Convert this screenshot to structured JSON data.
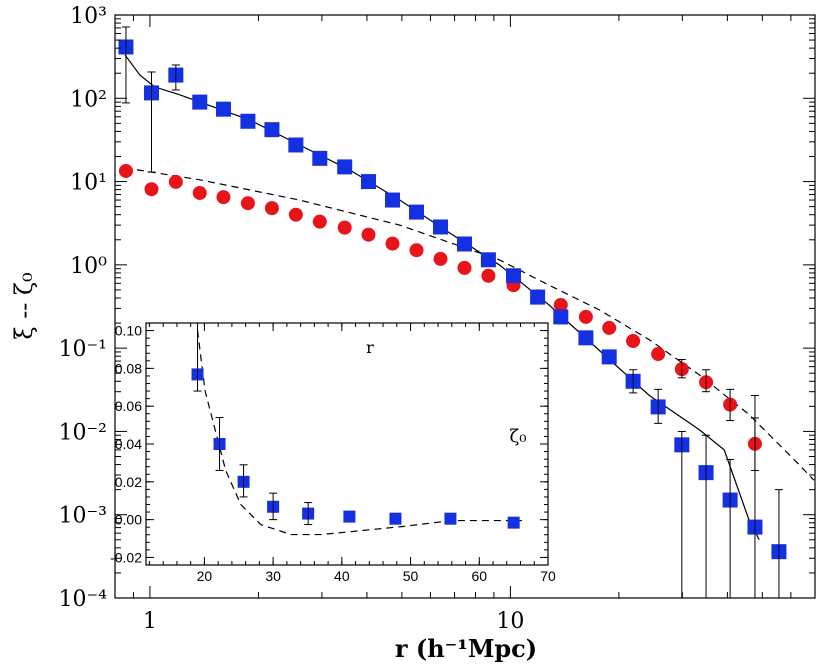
{
  "chart_data": [
    {
      "type": "scatter",
      "xscale": "log",
      "yscale": "log",
      "x_label": "r (h⁻¹Mpc)",
      "y_label": "ξ -- ζ₀",
      "xlim": [
        0.8,
        70
      ],
      "ylim": [
        0.0001,
        1000
      ],
      "xticks": [
        1,
        10
      ],
      "yticks": [
        {
          "value": 0.0001,
          "label": "10⁻⁴"
        },
        {
          "value": 0.001,
          "label": "10⁻³"
        },
        {
          "value": 0.01,
          "label": "10⁻²"
        },
        {
          "value": 0.1,
          "label": "10⁻¹"
        },
        {
          "value": 1,
          "label": "10⁰"
        },
        {
          "value": 10,
          "label": "10¹"
        },
        {
          "value": 100,
          "label": "10²"
        },
        {
          "value": 1000,
          "label": "10³"
        }
      ],
      "series": [
        {
          "marker": "circle",
          "color": "#e8141a",
          "x": [
            0.858,
            1.01,
            1.18,
            1.375,
            1.6,
            1.87,
            2.18,
            2.54,
            2.96,
            3.47,
            4.04,
            4.71,
            5.49,
            6.4,
            7.46,
            8.69,
            10.2,
            11.9,
            13.8,
            16.2,
            18.8,
            21.9,
            25.7,
            29.9,
            34.9,
            40.7,
            47.7
          ],
          "values": [
            13.4,
            8.1,
            9.9,
            7.3,
            6.5,
            5.5,
            4.8,
            4.0,
            3.3,
            2.8,
            2.3,
            1.8,
            1.5,
            1.18,
            0.92,
            0.74,
            0.57,
            0.42,
            0.33,
            0.237,
            0.175,
            0.122,
            0.085,
            0.056,
            0.039,
            0.021,
            0.0071
          ],
          "error_low": [
            null,
            null,
            null,
            null,
            null,
            null,
            null,
            null,
            null,
            null,
            null,
            null,
            null,
            null,
            null,
            null,
            null,
            null,
            null,
            null,
            null,
            null,
            null,
            0.044,
            0.03,
            0.0135,
            0.0034
          ],
          "error_high": [
            null,
            null,
            null,
            null,
            null,
            null,
            null,
            null,
            null,
            null,
            null,
            null,
            null,
            null,
            null,
            null,
            null,
            null,
            null,
            null,
            null,
            null,
            null,
            0.073,
            0.055,
            0.032,
            0.027
          ]
        },
        {
          "marker": "square",
          "color": "#1530e0",
          "x": [
            0.858,
            1.01,
            1.18,
            1.375,
            1.6,
            1.87,
            2.18,
            2.54,
            2.96,
            3.47,
            4.04,
            4.71,
            5.49,
            6.4,
            7.46,
            8.69,
            10.2,
            11.9,
            13.8,
            16.2,
            18.8,
            21.9,
            25.7,
            29.9,
            34.9,
            40.7,
            47.7,
            55.6
          ],
          "values": [
            413,
            116,
            190,
            90,
            74,
            53,
            42,
            27.5,
            19,
            15,
            10,
            6,
            4.3,
            2.85,
            1.78,
            1.15,
            0.74,
            0.41,
            0.237,
            0.133,
            0.0785,
            0.04,
            0.0197,
            0.0069,
            0.0032,
            0.0015,
            0.00071,
            0.00036
          ],
          "error_low": [
            88,
            13,
            126,
            null,
            null,
            null,
            null,
            null,
            null,
            null,
            null,
            null,
            null,
            null,
            null,
            null,
            null,
            null,
            null,
            null,
            null,
            0.029,
            0.0125,
            5e-05,
            5e-05,
            5e-05,
            5e-05,
            5e-05
          ],
          "error_high": [
            718,
            207,
            251,
            null,
            null,
            null,
            null,
            null,
            null,
            null,
            null,
            null,
            null,
            null,
            null,
            null,
            null,
            null,
            null,
            null,
            null,
            0.055,
            0.032,
            0.01,
            0.009,
            0.0046,
            0.0145,
            0.002
          ]
        },
        {
          "line": "solid",
          "color": "#000000",
          "x": [
            0.853,
            0.938,
            1.03,
            1.21,
            1.375,
            1.89,
            2.6,
            3.58,
            4.93,
            6.78,
            9.32,
            12.8,
            17.6,
            24.3,
            33.4,
            39.2,
            45.9,
            49.0
          ],
          "values": [
            331,
            190,
            137,
            110,
            90,
            55,
            27.5,
            13.8,
            6.0,
            2.42,
            1.0,
            0.33,
            0.095,
            0.027,
            0.0105,
            0.006,
            0.00087,
            0.0005
          ]
        },
        {
          "line": "dashed",
          "color": "#000000",
          "x": [
            0.853,
            1.375,
            2.6,
            4.93,
            9.32,
            12.8,
            17.6,
            24.3,
            33.4,
            45.9,
            63.2,
            69.5
          ],
          "values": [
            14.6,
            10.5,
            6.0,
            3.0,
            1.15,
            0.57,
            0.29,
            0.126,
            0.048,
            0.016,
            0.004,
            0.0026
          ]
        }
      ]
    },
    {
      "type": "scatter",
      "xscale": "linear",
      "yscale": "linear",
      "x_label": "r",
      "y_label": "ζ₀",
      "xlim": [
        11.5,
        70
      ],
      "ylim": [
        -0.024,
        0.104
      ],
      "xticks": [
        20,
        30,
        40,
        50,
        60,
        70
      ],
      "yticks": [
        -0.02,
        {
          "value": 0,
          "label": "0.00"
        },
        0.02,
        0.04,
        0.06,
        0.08,
        {
          "value": 0.1,
          "label": "0.10"
        }
      ],
      "series": [
        {
          "marker": "square",
          "color": "#1530e0",
          "x": [
            19.0,
            22.2,
            25.7,
            30.0,
            35.1,
            41.1,
            47.8,
            55.8,
            65.0
          ],
          "values": [
            0.0768,
            0.04,
            0.02,
            0.0068,
            0.0032,
            0.0016,
            0.0005,
            0.0005,
            -0.0016
          ],
          "error_low": [
            0.068,
            0.026,
            0.012,
            0.0,
            -0.0026,
            null,
            null,
            null,
            null
          ],
          "error_high": [
            0.104,
            0.054,
            0.029,
            0.014,
            0.009,
            null,
            null,
            null,
            null
          ]
        },
        {
          "line": "dashed",
          "color": "#000000",
          "x": [
            19.0,
            20.1,
            21.6,
            23.1,
            25.3,
            28.2,
            32.6,
            37.0,
            48.7,
            56.0,
            66.2
          ],
          "values": [
            0.1,
            0.068,
            0.047,
            0.026,
            0.008,
            -0.0026,
            -0.0079,
            -0.0079,
            -0.0037,
            -0.0005,
            -0.0005
          ]
        }
      ]
    }
  ]
}
